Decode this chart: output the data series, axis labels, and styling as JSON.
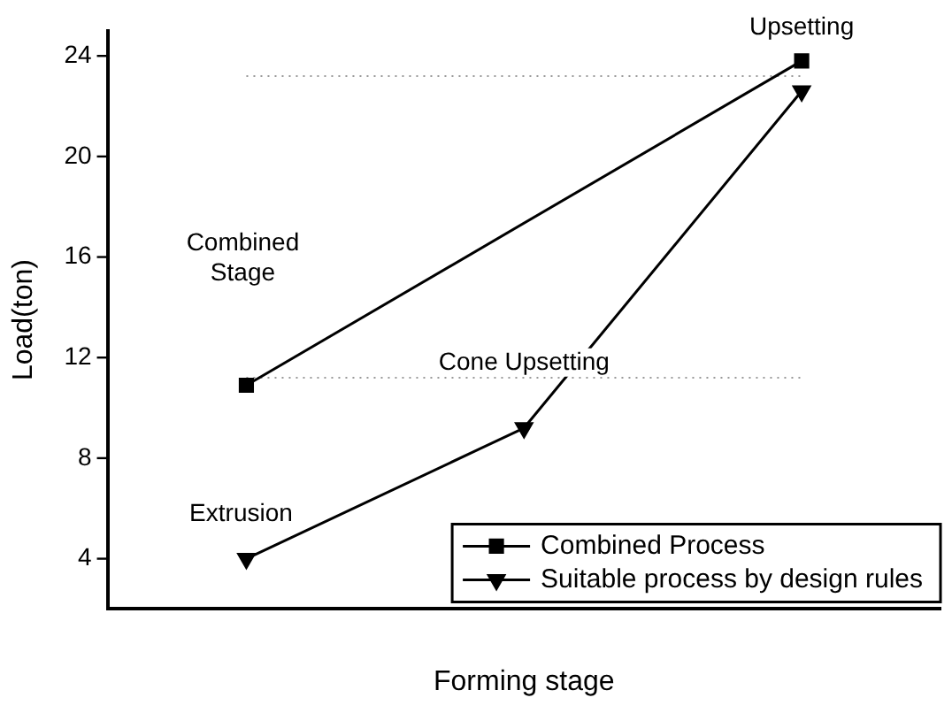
{
  "chart_data": {
    "type": "line",
    "xlabel": "Forming stage",
    "ylabel": "Load(ton)",
    "categories": [
      null,
      null,
      null
    ],
    "series": [
      {
        "name": "Combined Process",
        "color": "#000000",
        "marker": "square",
        "values": [
          10.9,
          null,
          23.8
        ]
      },
      {
        "name": "Suitable process by design rules",
        "color": "#000000",
        "marker": "triangle",
        "values": [
          4.0,
          9.2,
          22.6
        ]
      }
    ],
    "ylim": [
      2,
      25
    ],
    "yticks": [
      4,
      8,
      12,
      16,
      20,
      24
    ],
    "ref_lines": [
      {
        "axis": "y",
        "value": 23.2,
        "color": "#999999",
        "line_style": "dotted"
      },
      {
        "axis": "y",
        "value": 11.2,
        "color": "#999999",
        "line_style": "dotted"
      }
    ],
    "annotations": [
      {
        "text": "Upsetting",
        "y": 23.8
      },
      "Combined Stage",
      {
        "text": "Cone Upsetting",
        "y": 9.2
      },
      {
        "text": "Extrusion",
        "y": 4.0
      }
    ],
    "legend": "bottom right",
    "grid": false,
    "line_style": "solid"
  }
}
